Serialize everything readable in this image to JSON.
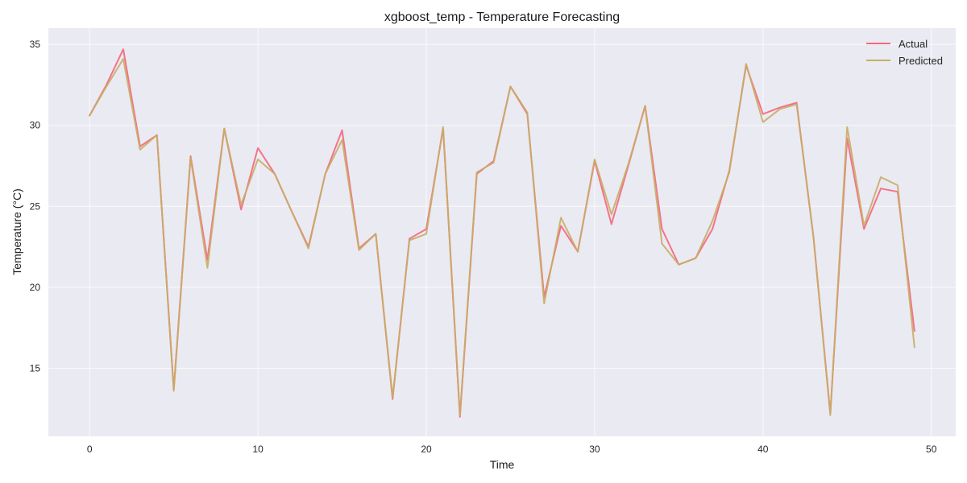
{
  "chart_data": {
    "type": "line",
    "title": "xgboost_temp - Temperature Forecasting",
    "xlabel": "Time",
    "ylabel": "Temperature (°C)",
    "xlim": [
      -2.45,
      51.45
    ],
    "ylim": [
      10.8,
      36.0
    ],
    "xticks": [
      0,
      10,
      20,
      30,
      40,
      50
    ],
    "yticks": [
      15,
      20,
      25,
      30,
      35
    ],
    "grid": true,
    "legend_position": "top-right",
    "colors": {
      "plot_background": "#eaeaf2",
      "grid": "#ffffff"
    },
    "x": [
      0,
      1,
      2,
      3,
      4,
      5,
      6,
      7,
      8,
      9,
      10,
      11,
      12,
      13,
      14,
      15,
      16,
      17,
      18,
      19,
      20,
      21,
      22,
      23,
      24,
      25,
      26,
      27,
      28,
      29,
      30,
      31,
      32,
      33,
      34,
      35,
      36,
      37,
      38,
      39,
      40,
      41,
      42,
      43,
      44,
      45,
      46,
      47,
      48,
      49
    ],
    "series": [
      {
        "name": "Actual",
        "color": "#f4667d",
        "values": [
          30.6,
          32.5,
          34.7,
          28.7,
          29.4,
          13.7,
          28.1,
          21.7,
          29.8,
          24.8,
          28.6,
          27.0,
          24.7,
          22.5,
          27.0,
          29.7,
          22.4,
          23.3,
          13.1,
          23.0,
          23.6,
          29.8,
          12.0,
          27.0,
          27.8,
          32.4,
          30.7,
          19.4,
          23.8,
          22.2,
          27.8,
          23.9,
          27.5,
          31.2,
          23.6,
          21.4,
          21.8,
          23.6,
          27.2,
          33.7,
          30.7,
          31.1,
          31.4,
          23.1,
          12.2,
          29.2,
          23.6,
          26.1,
          25.9,
          17.3
        ]
      },
      {
        "name": "Predicted",
        "color": "#c8ad66",
        "values": [
          30.6,
          32.4,
          34.1,
          28.5,
          29.4,
          13.6,
          28.0,
          21.2,
          29.8,
          25.1,
          27.9,
          27.0,
          24.7,
          22.4,
          27.0,
          29.1,
          22.3,
          23.3,
          13.2,
          22.9,
          23.3,
          29.9,
          12.1,
          27.1,
          27.7,
          32.4,
          30.8,
          19.0,
          24.3,
          22.2,
          27.9,
          24.5,
          27.6,
          31.2,
          22.7,
          21.4,
          21.8,
          24.1,
          27.1,
          33.8,
          30.2,
          31.0,
          31.3,
          23.1,
          12.1,
          29.9,
          23.8,
          26.8,
          26.3,
          16.3
        ]
      }
    ]
  }
}
